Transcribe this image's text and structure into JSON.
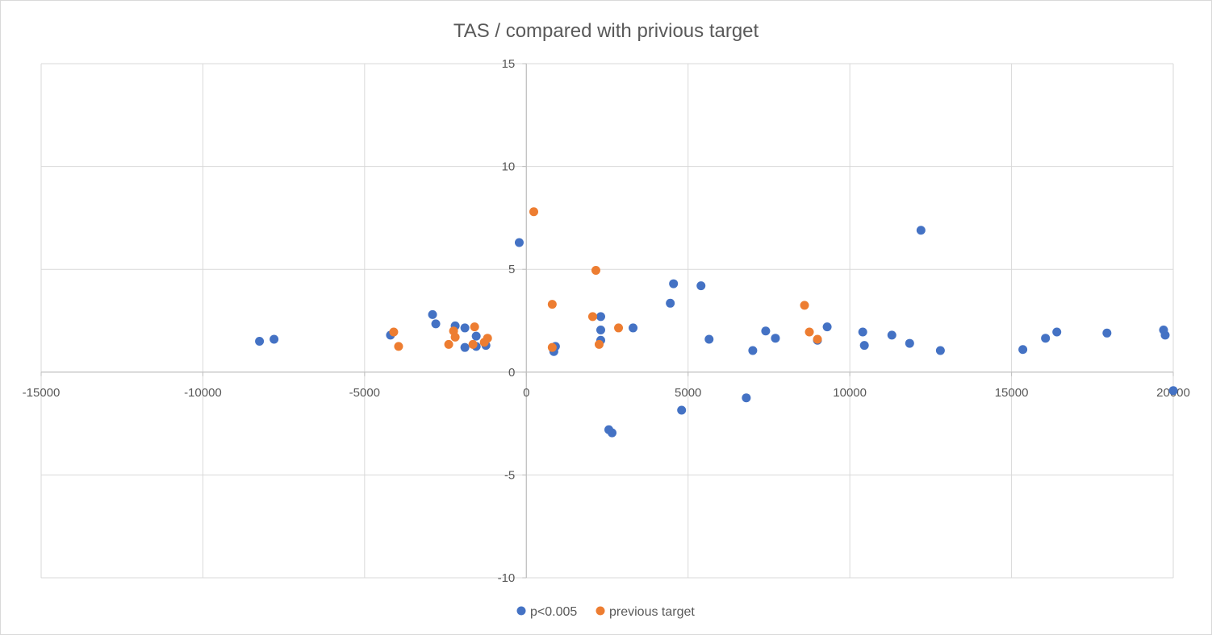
{
  "chart_data": {
    "type": "scatter",
    "title": "TAS / compared with privious target",
    "xlabel": "",
    "ylabel": "",
    "xlim": [
      -15000,
      20000
    ],
    "ylim": [
      -10,
      15
    ],
    "x_ticks": [
      -15000,
      -10000,
      -5000,
      0,
      5000,
      10000,
      15000,
      20000
    ],
    "y_ticks": [
      -10,
      -5,
      0,
      5,
      10,
      15
    ],
    "grid": true,
    "legend_position": "bottom",
    "series": [
      {
        "name": "p<0.005",
        "color": "#4472c4",
        "points": [
          [
            -8250,
            1.5
          ],
          [
            -7800,
            1.6
          ],
          [
            -4200,
            1.8
          ],
          [
            -2900,
            2.8
          ],
          [
            -2800,
            2.35
          ],
          [
            -2200,
            2.25
          ],
          [
            -1900,
            2.15
          ],
          [
            -1900,
            1.2
          ],
          [
            -1550,
            1.25
          ],
          [
            -1550,
            1.75
          ],
          [
            -1250,
            1.3
          ],
          [
            -220,
            6.3
          ],
          [
            850,
            1.0
          ],
          [
            900,
            1.25
          ],
          [
            2300,
            2.7
          ],
          [
            2300,
            2.05
          ],
          [
            2300,
            1.55
          ],
          [
            2550,
            -2.8
          ],
          [
            2650,
            -2.95
          ],
          [
            3300,
            2.15
          ],
          [
            4450,
            3.35
          ],
          [
            4550,
            4.3
          ],
          [
            4800,
            -1.85
          ],
          [
            5400,
            4.2
          ],
          [
            5650,
            1.6
          ],
          [
            6800,
            -1.25
          ],
          [
            7000,
            1.05
          ],
          [
            7400,
            2.0
          ],
          [
            7700,
            1.65
          ],
          [
            9000,
            1.55
          ],
          [
            9300,
            2.2
          ],
          [
            10400,
            1.95
          ],
          [
            10450,
            1.3
          ],
          [
            11300,
            1.8
          ],
          [
            11850,
            1.4
          ],
          [
            12200,
            6.9
          ],
          [
            12800,
            1.05
          ],
          [
            15350,
            1.1
          ],
          [
            16050,
            1.65
          ],
          [
            16400,
            1.95
          ],
          [
            17950,
            1.9
          ],
          [
            19700,
            2.05
          ],
          [
            19750,
            1.8
          ],
          [
            20000,
            -0.9
          ]
        ]
      },
      {
        "name": "previous target",
        "color": "#ed7d31",
        "points": [
          [
            -4100,
            1.95
          ],
          [
            -3950,
            1.25
          ],
          [
            -2400,
            1.35
          ],
          [
            -2250,
            2.0
          ],
          [
            -2200,
            1.7
          ],
          [
            -1650,
            1.35
          ],
          [
            -1600,
            2.2
          ],
          [
            -1300,
            1.45
          ],
          [
            -1200,
            1.65
          ],
          [
            230,
            7.8
          ],
          [
            800,
            3.3
          ],
          [
            800,
            1.2
          ],
          [
            2050,
            2.7
          ],
          [
            2150,
            4.95
          ],
          [
            2250,
            1.35
          ],
          [
            2850,
            2.15
          ],
          [
            8600,
            3.25
          ],
          [
            8750,
            1.95
          ],
          [
            9000,
            1.6
          ]
        ]
      }
    ]
  }
}
